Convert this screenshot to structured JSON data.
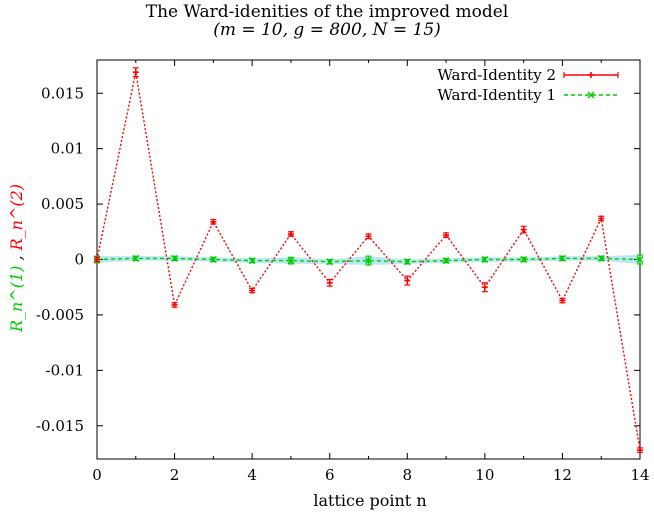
{
  "chart_data": {
    "type": "line",
    "title": "The Ward-idenities of the improved model",
    "subtitle": "(m = 10, g = 800, N = 15)",
    "xlabel": "lattice point n",
    "ylabel_part1": "R_n^(1)",
    "ylabel_sep": " , ",
    "ylabel_part2": "R_n^(2)",
    "xlim": [
      0,
      14
    ],
    "ylim": [
      -0.018,
      0.018
    ],
    "x_ticks": [
      0,
      2,
      4,
      6,
      8,
      10,
      12,
      14
    ],
    "x_tick_labels": [
      "0",
      "2",
      "4",
      "6",
      "8",
      "10",
      "12",
      "14"
    ],
    "y_ticks": [
      -0.015,
      -0.01,
      -0.005,
      0,
      0.005,
      0.01,
      0.015
    ],
    "y_tick_labels": [
      "-0.015",
      "-0.01",
      "-0.005",
      "0",
      "0.005",
      "0.01",
      "0.015"
    ],
    "grid": false,
    "legend_position": "top-right",
    "x": [
      0,
      1,
      2,
      3,
      4,
      5,
      6,
      7,
      8,
      9,
      10,
      11,
      12,
      13,
      14
    ],
    "series": [
      {
        "name": "Ward-Identity 2",
        "color": "#ff0000",
        "marker": "plus",
        "values": [
          0.0,
          0.0169,
          -0.0041,
          0.0034,
          -0.0028,
          0.0023,
          -0.0021,
          0.0021,
          -0.0019,
          0.0022,
          -0.0025,
          0.0027,
          -0.0037,
          0.0037,
          -0.0172
        ],
        "errors": [
          0.0002,
          0.0004,
          0.0002,
          0.0002,
          0.0002,
          0.0002,
          0.0003,
          0.0002,
          0.0004,
          0.0002,
          0.0004,
          0.0003,
          0.0002,
          0.0002,
          0.0002
        ]
      },
      {
        "name": "Ward-Identity 1",
        "color": "#00cc00",
        "marker": "cross",
        "values": [
          0.0,
          0.0001,
          0.0001,
          0.0,
          -0.0001,
          -0.0001,
          -0.0002,
          -0.0001,
          -0.0002,
          -0.0001,
          0.0,
          0.0,
          0.0001,
          0.0001,
          0.0
        ],
        "errors": [
          0.0003,
          0.0002,
          0.0002,
          0.0002,
          0.0002,
          0.0003,
          0.0002,
          0.0004,
          0.0002,
          0.0002,
          0.0002,
          0.0002,
          0.0002,
          0.0002,
          0.0004
        ]
      }
    ],
    "band_color": "#7fd4e6"
  }
}
